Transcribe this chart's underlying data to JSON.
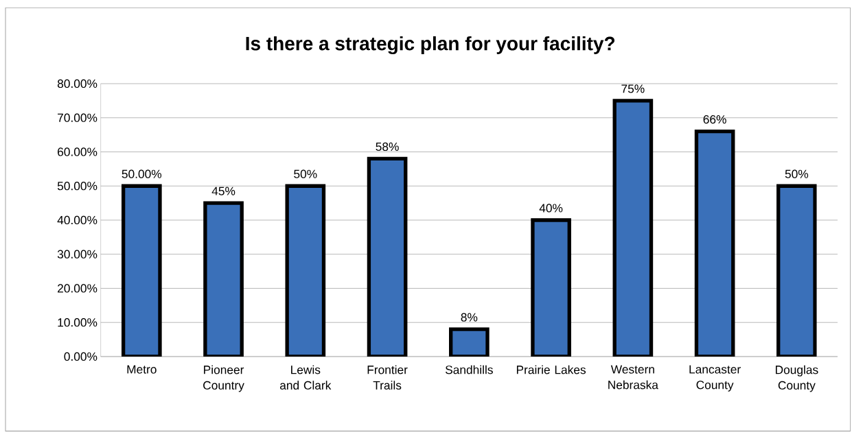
{
  "chart_data": {
    "type": "bar",
    "title": "Is there a strategic plan for your facility?",
    "categories": [
      "Metro",
      "Pioneer Country",
      "Lewis and Clark",
      "Frontier Trails",
      "Sandhills",
      "Prairie Lakes",
      "Western Nebraska",
      "Lancaster County",
      "Douglas County"
    ],
    "values": [
      50,
      45,
      50,
      58,
      8,
      40,
      75,
      66,
      50
    ],
    "value_labels": [
      "50.00%",
      "45%",
      "50%",
      "58%",
      "8%",
      "40%",
      "75%",
      "66%",
      "50%"
    ],
    "color": "#3a70b9",
    "ylim": [
      0,
      80
    ],
    "yticks": [
      {
        "value": 0,
        "label": "0.00%"
      },
      {
        "value": 10,
        "label": "10.00%"
      },
      {
        "value": 20,
        "label": "20.00%"
      },
      {
        "value": 30,
        "label": "30.00%"
      },
      {
        "value": 40,
        "label": "40.00%"
      },
      {
        "value": 50,
        "label": "50.00%"
      },
      {
        "value": 60,
        "label": "60.00%"
      },
      {
        "value": 70,
        "label": "70.00%"
      },
      {
        "value": 80,
        "label": "80.00%"
      }
    ],
    "grid": "y"
  }
}
